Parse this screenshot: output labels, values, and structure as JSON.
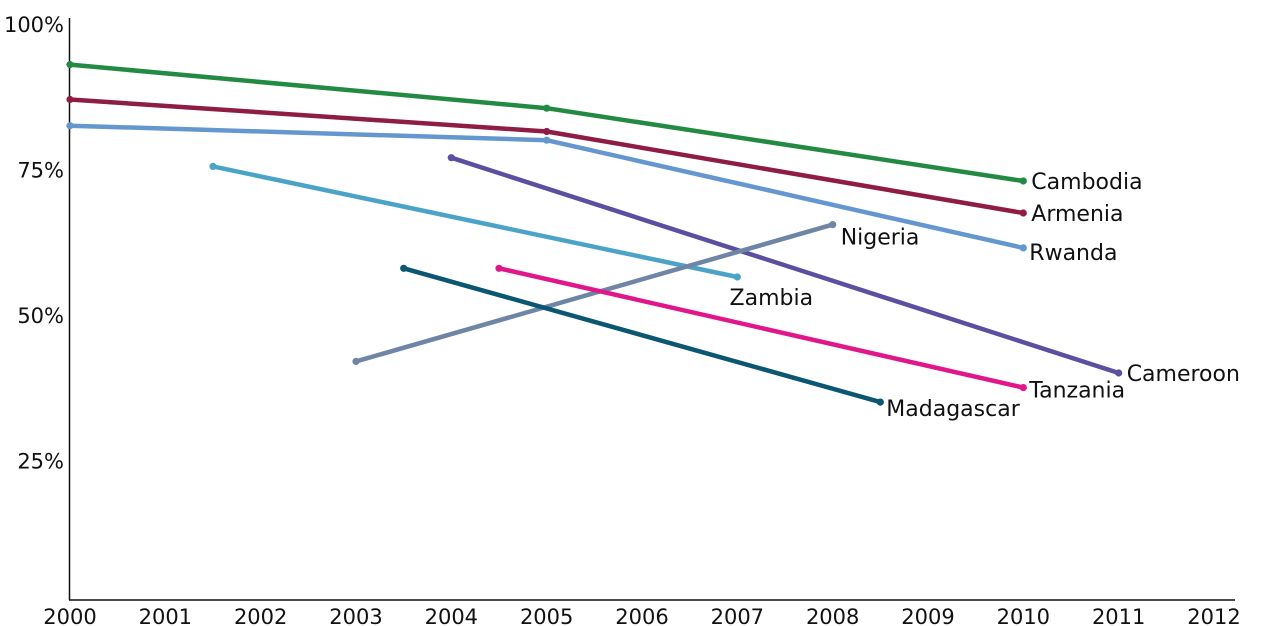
{
  "chart_data": {
    "type": "line",
    "title": "",
    "xlabel": "",
    "ylabel": "",
    "x_ticks": [
      "2000",
      "2001",
      "2002",
      "2003",
      "2004",
      "2005",
      "2006",
      "2007",
      "2008",
      "2009",
      "2010",
      "2011",
      "2012"
    ],
    "y_ticks": [
      {
        "value": 25,
        "label": "25%"
      },
      {
        "value": 50,
        "label": "50%"
      },
      {
        "value": 75,
        "label": "75%"
      },
      {
        "value": 100,
        "label": "100%"
      }
    ],
    "xlim": [
      2000,
      2012
    ],
    "ylim": [
      0,
      100
    ],
    "grid": false,
    "series": [
      {
        "name": "Cambodia",
        "color": "#238a43",
        "x": [
          2000,
          2005,
          2010
        ],
        "y": [
          92,
          84.5,
          72
        ]
      },
      {
        "name": "Armenia",
        "color": "#8f1c45",
        "x": [
          2000,
          2005,
          2010
        ],
        "y": [
          86,
          80.5,
          66.5
        ]
      },
      {
        "name": "Rwanda",
        "color": "#6497cf",
        "x": [
          2000,
          2005,
          2010
        ],
        "y": [
          81.5,
          79,
          60.5
        ]
      },
      {
        "name": "Zambia",
        "color": "#4ba3c8",
        "x": [
          2001.5,
          2007
        ],
        "y": [
          74.5,
          55.5
        ]
      },
      {
        "name": "Cameroon",
        "color": "#5b4fa0",
        "x": [
          2004,
          2011
        ],
        "y": [
          76,
          39
        ]
      },
      {
        "name": "Nigeria",
        "color": "#6e85a6",
        "x": [
          2003,
          2008
        ],
        "y": [
          41,
          64.5
        ]
      },
      {
        "name": "Madagascar",
        "color": "#0b5673",
        "x": [
          2003.5,
          2008.5
        ],
        "y": [
          57,
          34
        ]
      },
      {
        "name": "Tanzania",
        "color": "#e0168a",
        "x": [
          2004.5,
          2010
        ],
        "y": [
          57,
          36.5
        ]
      }
    ]
  }
}
